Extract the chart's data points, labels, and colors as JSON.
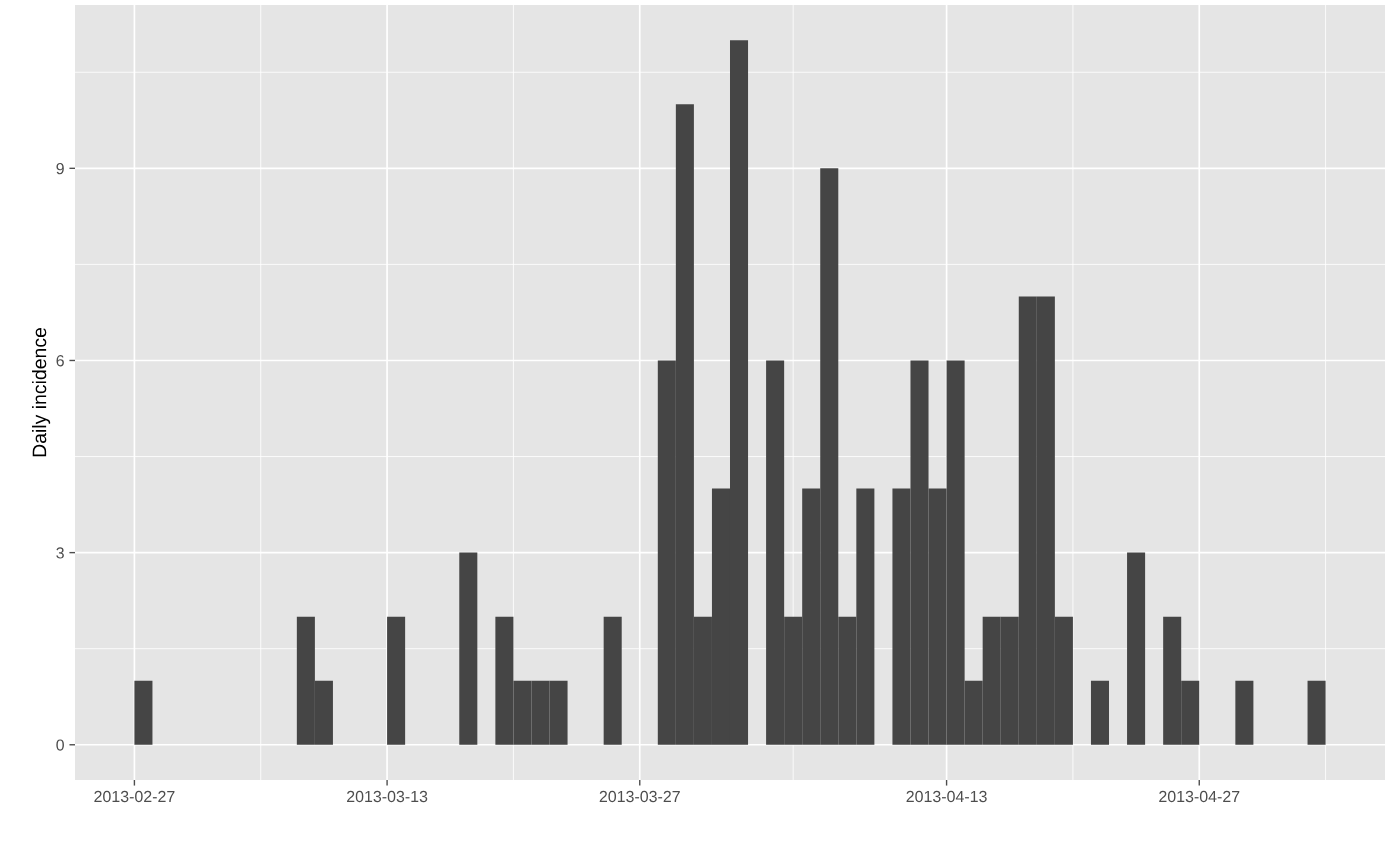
{
  "chart_data": {
    "type": "histogram",
    "ylabel": "Daily incidence",
    "color": "#454545",
    "bins": [
      "2013-02-27",
      "2013-02-28",
      "2013-03-01",
      "2013-03-02",
      "2013-03-03",
      "2013-03-04",
      "2013-03-05",
      "2013-03-06",
      "2013-03-07",
      "2013-03-08",
      "2013-03-09",
      "2013-03-10",
      "2013-03-11",
      "2013-03-12",
      "2013-03-13",
      "2013-03-14",
      "2013-03-15",
      "2013-03-16",
      "2013-03-17",
      "2013-03-18",
      "2013-03-19",
      "2013-03-20",
      "2013-03-21",
      "2013-03-22",
      "2013-03-23",
      "2013-03-24",
      "2013-03-25",
      "2013-03-26",
      "2013-03-27",
      "2013-03-28",
      "2013-03-29",
      "2013-03-30",
      "2013-03-31",
      "2013-04-01",
      "2013-04-02",
      "2013-04-03",
      "2013-04-04",
      "2013-04-05",
      "2013-04-06",
      "2013-04-07",
      "2013-04-08",
      "2013-04-09",
      "2013-04-10",
      "2013-04-11",
      "2013-04-12",
      "2013-04-13",
      "2013-04-14",
      "2013-04-15",
      "2013-04-16",
      "2013-04-17",
      "2013-04-18",
      "2013-04-19",
      "2013-04-20",
      "2013-04-21",
      "2013-04-22",
      "2013-04-23",
      "2013-04-24",
      "2013-04-25",
      "2013-04-26",
      "2013-04-27",
      "2013-04-28",
      "2013-04-29",
      "2013-04-30",
      "2013-05-01",
      "2013-05-02",
      "2013-05-03",
      "2013-05-04"
    ],
    "values": [
      1,
      0,
      0,
      0,
      0,
      0,
      0,
      0,
      0,
      2,
      1,
      0,
      0,
      0,
      2,
      0,
      0,
      0,
      3,
      0,
      2,
      1,
      1,
      1,
      0,
      0,
      2,
      0,
      0,
      6,
      10,
      2,
      4,
      11,
      0,
      6,
      2,
      4,
      9,
      2,
      4,
      0,
      4,
      6,
      4,
      6,
      1,
      2,
      2,
      7,
      7,
      2,
      0,
      1,
      0,
      3,
      0,
      2,
      1,
      0,
      0,
      1,
      0,
      0,
      0,
      1
    ],
    "xlim": [
      "2013-02-23T17:00",
      "2013-05-07T07:00"
    ],
    "xticks": [
      {
        "value": "2013-02-27",
        "label": "2013-02-27"
      },
      {
        "value": "2013-03-13",
        "label": "2013-03-13"
      },
      {
        "value": "2013-03-27",
        "label": "2013-03-27"
      },
      {
        "value": "2013-04-13",
        "label": "2013-04-13"
      },
      {
        "value": "2013-04-27",
        "label": "2013-04-27"
      }
    ],
    "ylim": [
      -0.55,
      11.55
    ],
    "yticks": [
      0,
      3,
      6,
      9
    ],
    "grid": true
  }
}
